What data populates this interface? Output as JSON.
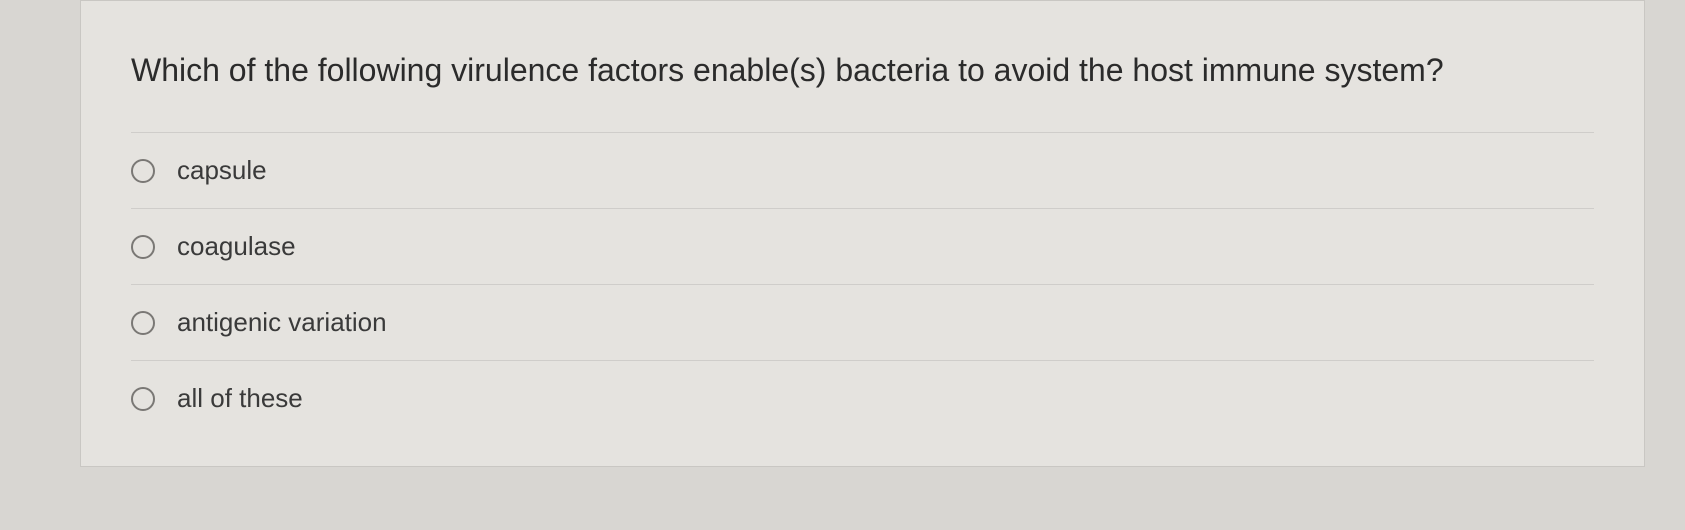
{
  "question": {
    "prompt": "Which of the following virulence factors enable(s) bacteria to avoid the host immune system?",
    "options": [
      {
        "label": "capsule",
        "selected": false
      },
      {
        "label": "coagulase",
        "selected": false
      },
      {
        "label": "antigenic variation",
        "selected": false
      },
      {
        "label": "all of these",
        "selected": false
      }
    ]
  },
  "colors": {
    "page_bg": "#d8d6d2",
    "card_bg": "#e5e3df",
    "border": "#c9c7c3",
    "divider": "#cfcdca",
    "text": "#2b2b2b",
    "option_text": "#3a3a3a",
    "radio_border": "#7a7875"
  },
  "typography": {
    "question_fontsize": 32,
    "option_fontsize": 26,
    "font_family": "Helvetica Neue, Arial, sans-serif"
  }
}
